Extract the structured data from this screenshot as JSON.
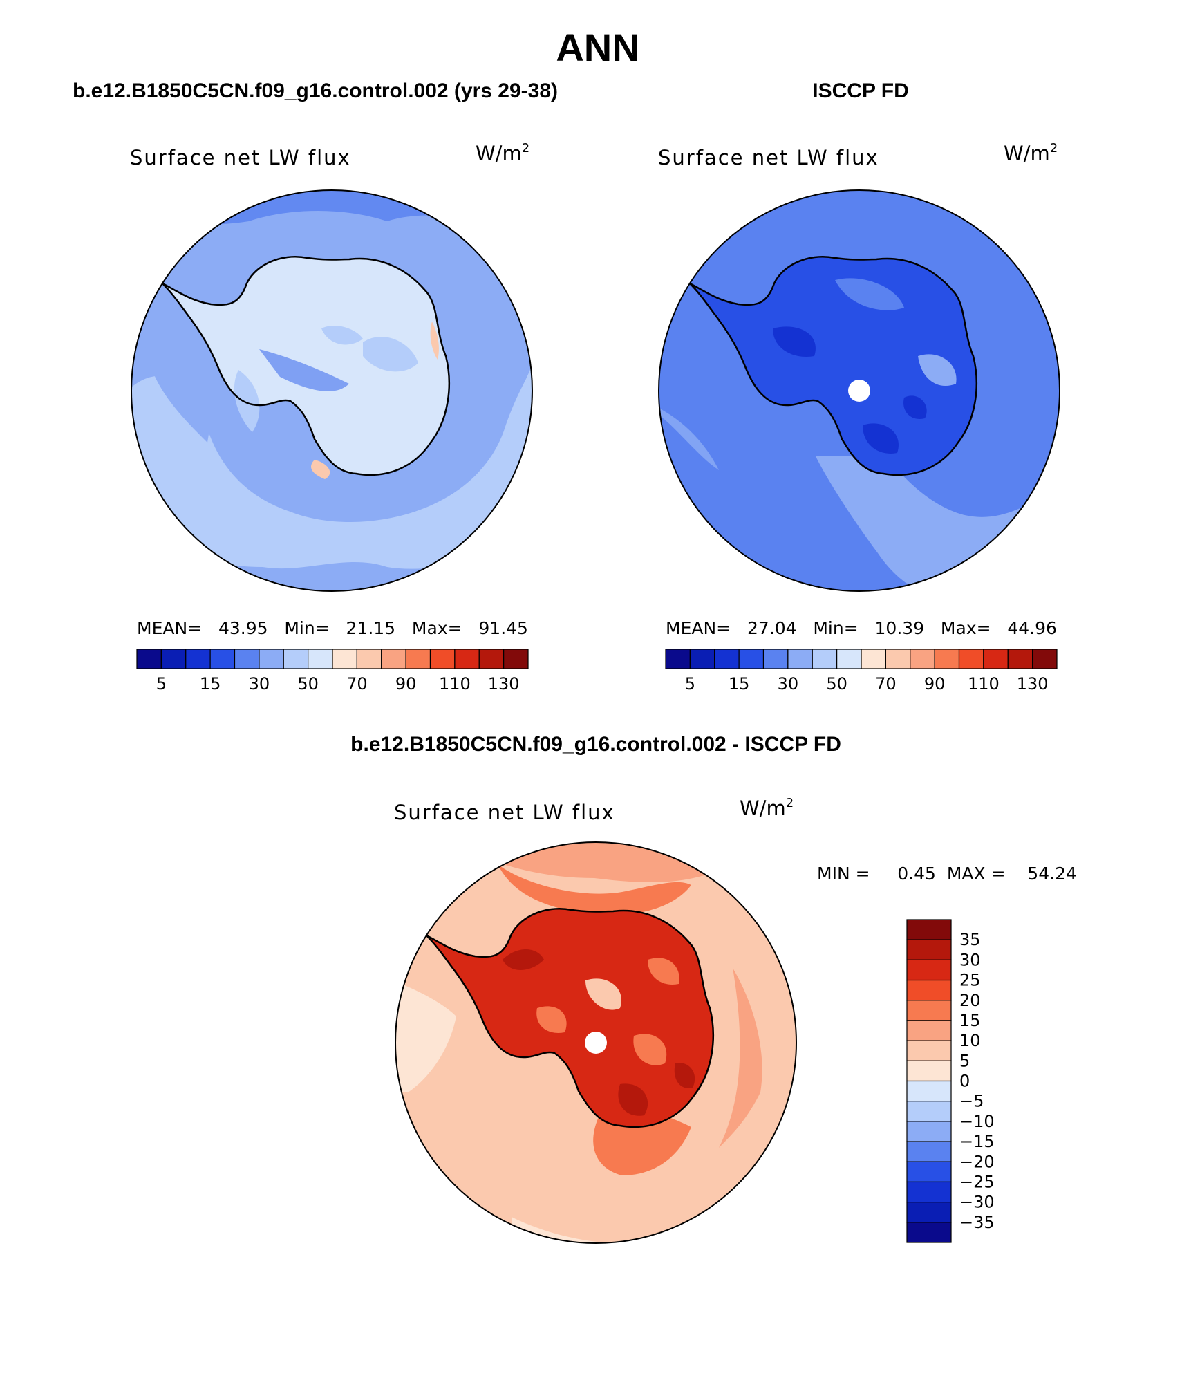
{
  "figure": {
    "title": "ANN",
    "panel_left_title": "b.e12.B1850C5CN.f09_g16.control.002 (yrs 29-38)",
    "panel_right_title": "ISCCP FD",
    "diff_title": "b.e12.B1850C5CN.f09_g16.control.002 - ISCCP FD"
  },
  "colors": {
    "seq_palette": [
      "#0a0a8c",
      "#0a1eb4",
      "#1432d2",
      "#2850e6",
      "#5a82f0",
      "#8cacf5",
      "#b4cdfa",
      "#d7e6fb",
      "#fde5d4",
      "#fbc9ae",
      "#f9a382",
      "#f77a50",
      "#f04d28",
      "#d72814",
      "#b4180c",
      "#820a0a"
    ],
    "diff_palette": [
      "#0a0a8c",
      "#0a1eb4",
      "#1432d2",
      "#2850e6",
      "#5a82f0",
      "#8cacf5",
      "#b4cdfa",
      "#d7e6fb",
      "#fde5d4",
      "#fbc9ae",
      "#f9a382",
      "#f77a50",
      "#f04d28",
      "#d72814",
      "#b4180c",
      "#820a0a"
    ],
    "land": "#ffffff",
    "coast": "#000000"
  },
  "chart_data": [
    {
      "type": "heatmap",
      "panel": "model",
      "field_label": "Surface net LW flux",
      "units_base": "W/m",
      "units_exp": "2",
      "stats_line": "MEAN=   43.95   Min=   21.15   Max=   91.45",
      "mean": 43.95,
      "min": 21.15,
      "max": 91.45,
      "colorbar_levels": [
        5,
        10,
        15,
        20,
        30,
        40,
        50,
        60,
        70,
        80,
        90,
        100,
        110,
        120,
        130
      ],
      "colorbar_tick_labels": [
        "5",
        "15",
        "30",
        "50",
        "70",
        "90",
        "110",
        "130"
      ],
      "pole_marker": false
    },
    {
      "type": "heatmap",
      "panel": "observations",
      "field_label": "Surface net LW flux",
      "units_base": "W/m",
      "units_exp": "2",
      "stats_line": "MEAN=   27.04   Min=   10.39   Max=   44.96",
      "mean": 27.04,
      "min": 10.39,
      "max": 44.96,
      "colorbar_levels": [
        5,
        10,
        15,
        20,
        30,
        40,
        50,
        60,
        70,
        80,
        90,
        100,
        110,
        120,
        130
      ],
      "colorbar_tick_labels": [
        "5",
        "15",
        "30",
        "50",
        "70",
        "90",
        "110",
        "130"
      ],
      "pole_marker": true
    },
    {
      "type": "heatmap",
      "panel": "difference",
      "field_label": "Surface net LW flux",
      "units_base": "W/m",
      "units_exp": "2",
      "stats_line": "MIN =     0.45  MAX =    54.24",
      "min": 0.45,
      "max": 54.24,
      "colorbar_levels": [
        35,
        30,
        25,
        20,
        15,
        10,
        5,
        0,
        -5,
        -10,
        -15,
        -20,
        -25,
        -30,
        -35
      ],
      "colorbar_tick_labels": [
        "35",
        "30",
        "25",
        "20",
        "15",
        "10",
        "5",
        "0",
        "−5",
        "−10",
        "−15",
        "−20",
        "−25",
        "−30",
        "−35"
      ],
      "pole_marker": true
    }
  ]
}
